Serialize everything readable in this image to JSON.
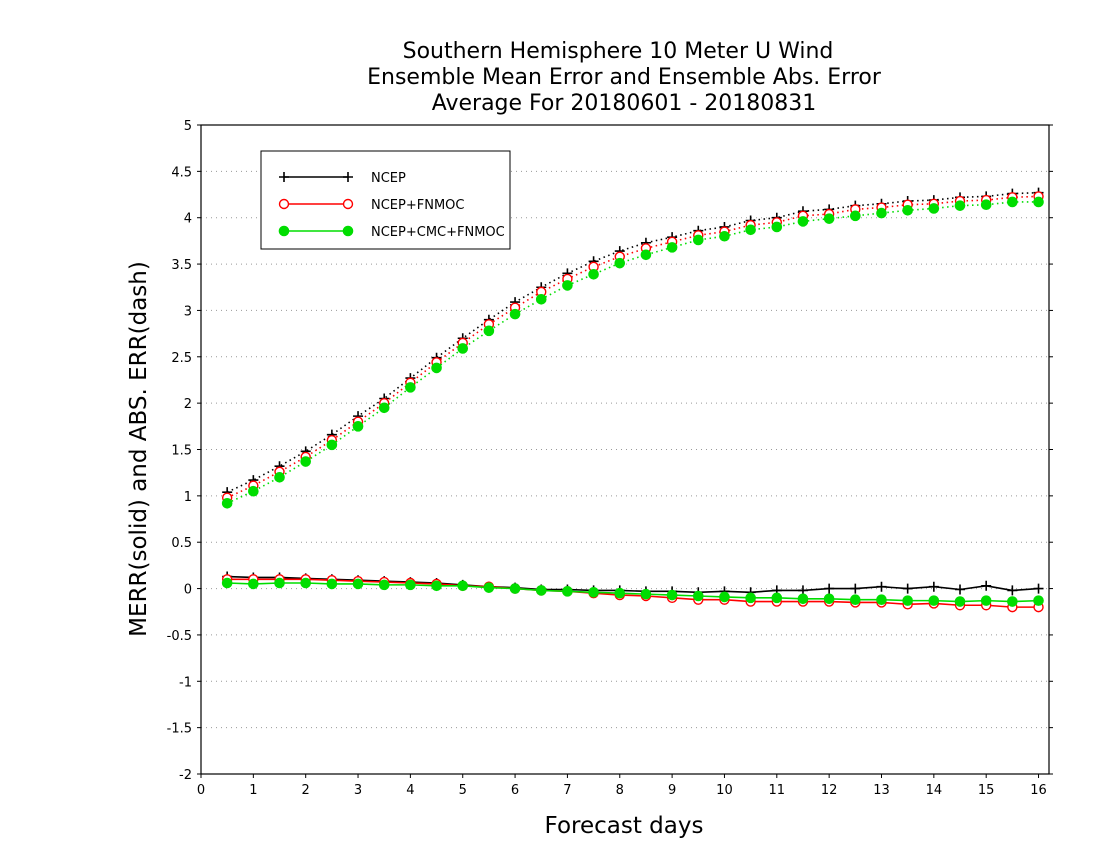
{
  "chart_data": {
    "type": "line",
    "title_lines": [
      "Southern Hemisphere 10 Meter U Wind",
      "Ensemble Mean Error and Ensemble Abs. Error",
      "Average For 20180601 - 20180831"
    ],
    "xlabel": "Forecast days",
    "ylabel": "MERR(solid) and ABS. ERR(dash)",
    "xlim": [
      0,
      16.2
    ],
    "ylim": [
      -2,
      5
    ],
    "x_ticks": [
      "0",
      "1",
      "2",
      "3",
      "4",
      "5",
      "6",
      "7",
      "8",
      "9",
      "10",
      "11",
      "12",
      "13",
      "14",
      "15",
      "16"
    ],
    "y_ticks": [
      "5",
      "4.5",
      "4",
      "3.5",
      "3",
      "2.5",
      "2",
      "1.5",
      "1",
      "0.5",
      "0",
      "-0.5",
      "-1",
      "-1.5",
      "-2"
    ],
    "grid": "horizontal dotted",
    "legend_position": "top-left",
    "x": [
      0.5,
      1,
      1.5,
      2,
      2.5,
      3,
      3.5,
      4,
      4.5,
      5,
      5.5,
      6,
      6.5,
      7,
      7.5,
      8,
      8.5,
      9,
      9.5,
      10,
      10.5,
      11,
      11.5,
      12,
      12.5,
      13,
      13.5,
      14,
      14.5,
      15,
      15.5,
      16
    ],
    "series": [
      {
        "name": "NCEP",
        "color": "#000000",
        "marker": "plus",
        "merr": [
          0.13,
          0.12,
          0.12,
          0.11,
          0.1,
          0.09,
          0.08,
          0.07,
          0.06,
          0.04,
          0.02,
          0.01,
          -0.01,
          -0.01,
          -0.02,
          -0.02,
          -0.03,
          -0.03,
          -0.04,
          -0.03,
          -0.04,
          -0.02,
          -0.02,
          0.0,
          0.0,
          0.02,
          0.0,
          0.02,
          -0.01,
          0.03,
          -0.02,
          0.0
        ],
        "abs_err": [
          1.04,
          1.17,
          1.32,
          1.48,
          1.66,
          1.86,
          2.05,
          2.27,
          2.49,
          2.7,
          2.9,
          3.09,
          3.25,
          3.4,
          3.53,
          3.64,
          3.73,
          3.79,
          3.86,
          3.9,
          3.97,
          4.0,
          4.07,
          4.09,
          4.13,
          4.15,
          4.18,
          4.19,
          4.22,
          4.23,
          4.26,
          4.27
        ]
      },
      {
        "name": "NCEP+FNMOC",
        "color": "#ff0000",
        "marker": "open-circle",
        "merr": [
          0.1,
          0.1,
          0.1,
          0.1,
          0.09,
          0.08,
          0.07,
          0.06,
          0.05,
          0.03,
          0.02,
          0.0,
          -0.02,
          -0.03,
          -0.05,
          -0.07,
          -0.08,
          -0.1,
          -0.12,
          -0.12,
          -0.14,
          -0.14,
          -0.14,
          -0.14,
          -0.15,
          -0.15,
          -0.17,
          -0.16,
          -0.18,
          -0.18,
          -0.2,
          -0.2
        ],
        "abs_err": [
          0.98,
          1.11,
          1.26,
          1.42,
          1.6,
          1.8,
          2.0,
          2.22,
          2.44,
          2.65,
          2.85,
          3.03,
          3.2,
          3.34,
          3.47,
          3.58,
          3.67,
          3.74,
          3.81,
          3.85,
          3.92,
          3.95,
          4.02,
          4.04,
          4.09,
          4.11,
          4.14,
          4.15,
          4.18,
          4.19,
          4.22,
          4.23
        ]
      },
      {
        "name": "NCEP+CMC+FNMOC",
        "color": "#00dd00",
        "marker": "filled-circle",
        "merr": [
          0.06,
          0.05,
          0.06,
          0.06,
          0.05,
          0.05,
          0.04,
          0.04,
          0.03,
          0.03,
          0.01,
          0.0,
          -0.02,
          -0.03,
          -0.04,
          -0.05,
          -0.06,
          -0.07,
          -0.08,
          -0.09,
          -0.1,
          -0.1,
          -0.11,
          -0.11,
          -0.12,
          -0.12,
          -0.13,
          -0.13,
          -0.14,
          -0.13,
          -0.14,
          -0.13
        ],
        "abs_err": [
          0.92,
          1.05,
          1.2,
          1.37,
          1.55,
          1.75,
          1.95,
          2.17,
          2.38,
          2.59,
          2.78,
          2.96,
          3.12,
          3.27,
          3.39,
          3.51,
          3.6,
          3.68,
          3.76,
          3.8,
          3.87,
          3.9,
          3.96,
          3.99,
          4.02,
          4.05,
          4.08,
          4.1,
          4.13,
          4.14,
          4.17,
          4.17
        ]
      }
    ]
  }
}
